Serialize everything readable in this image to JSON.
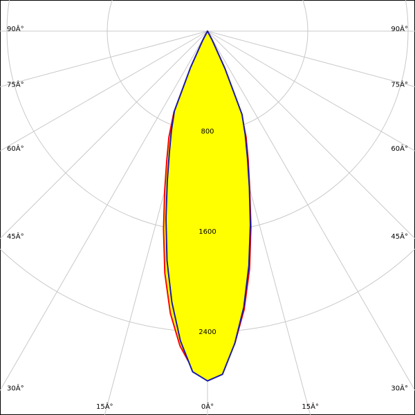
{
  "chart_data": {
    "type": "polar",
    "angle_ticks": [
      {
        "value": -90,
        "label": "90Â°"
      },
      {
        "value": -75,
        "label": "75Â°"
      },
      {
        "value": -60,
        "label": "60Â°"
      },
      {
        "value": -45,
        "label": "45Â°"
      },
      {
        "value": -30,
        "label": "30Â°"
      },
      {
        "value": -15,
        "label": "15Â°"
      },
      {
        "value": 0,
        "label": "0Â°"
      },
      {
        "value": 15,
        "label": "15Â°"
      },
      {
        "value": 30,
        "label": "30Â°"
      },
      {
        "value": 45,
        "label": "45Â°"
      },
      {
        "value": 60,
        "label": "60Â°"
      },
      {
        "value": 75,
        "label": "75Â°"
      },
      {
        "value": 90,
        "label": "90Â°"
      }
    ],
    "rlim": [
      0,
      3200
    ],
    "rticks": [
      800,
      1600,
      2400
    ],
    "fill": "#ffff00",
    "x": [
      -90,
      -27.5,
      -25,
      -22.5,
      -20,
      -17.5,
      -15,
      -12.5,
      -10,
      -7.5,
      -5,
      -2.5,
      0,
      2.5,
      5,
      7.5,
      10,
      12.5,
      15,
      17.5,
      20,
      22.5,
      25,
      27.5,
      90
    ],
    "series": [
      {
        "color": "#ff0000",
        "values": [
          0,
          80,
          300,
          700,
          900,
          1080,
          1320,
          1620,
          1960,
          2270,
          2520,
          2700,
          2780,
          2700,
          2500,
          2240,
          1930,
          1600,
          1300,
          1080,
          900,
          700,
          300,
          80,
          0
        ]
      },
      {
        "color": "#1a1aa8",
        "values": [
          0,
          80,
          320,
          690,
          840,
          1010,
          1240,
          1530,
          1860,
          2180,
          2480,
          2720,
          2790,
          2740,
          2500,
          2220,
          1900,
          1580,
          1290,
          1060,
          880,
          720,
          330,
          80,
          0
        ]
      }
    ]
  }
}
